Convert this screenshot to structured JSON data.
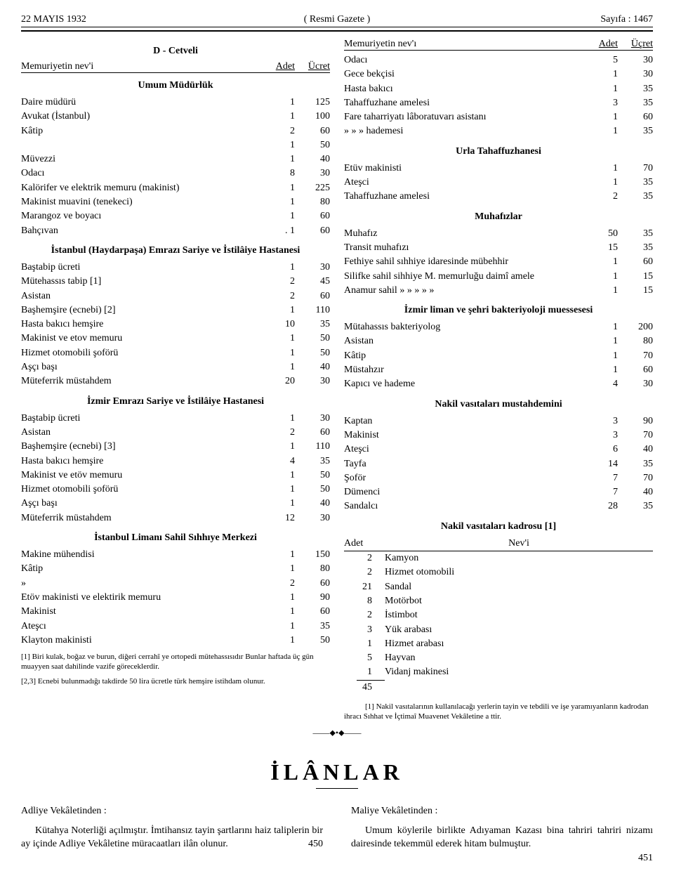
{
  "header": {
    "left": "22 MAYIS 1932",
    "center": "( Resmi Gazete )",
    "right": "Sayıfa : 1467"
  },
  "left_col": {
    "d_cetveli": "D - Cetveli",
    "header_lbl": "Memuriyetin nev'i",
    "header_adet": "Adet",
    "header_ucret": "Ücret",
    "sec1_title": "Umum Müdürlük",
    "sec1_rows": [
      {
        "lbl": "Daire müdürü",
        "adet": "1",
        "ucret": "125"
      },
      {
        "lbl": "Avukat (İstanbul)",
        "adet": "1",
        "ucret": "100"
      },
      {
        "lbl": "Kâtip",
        "adet": "2",
        "ucret": "60"
      },
      {
        "lbl": "",
        "adet": "1",
        "ucret": "50"
      },
      {
        "lbl": "Müvezzi",
        "adet": "1",
        "ucret": "40"
      },
      {
        "lbl": "Odacı",
        "adet": "8",
        "ucret": "30"
      },
      {
        "lbl": "Kalörifer ve elektrik memuru (makinist)",
        "adet": "1",
        "ucret": "225"
      },
      {
        "lbl": "Makinist muavini (tenekeci)",
        "adet": "1",
        "ucret": "80"
      },
      {
        "lbl": "Marangoz ve boyacı",
        "adet": "1",
        "ucret": "60"
      },
      {
        "lbl": "Bahçıvan",
        "adet": ". 1",
        "ucret": "60"
      }
    ],
    "sec2_title": "İstanbul (Haydarpaşa) Emrazı Sariye ve İstilâiye Hastanesi",
    "sec2_rows": [
      {
        "lbl": "Baştabip ücreti",
        "adet": "1",
        "ucret": "30"
      },
      {
        "lbl": "Mütehassıs tabip [1]",
        "adet": "2",
        "ucret": "45"
      },
      {
        "lbl": "Asistan",
        "adet": "2",
        "ucret": "60"
      },
      {
        "lbl": "Başhemşire (ecnebi) [2]",
        "adet": "1",
        "ucret": "110"
      },
      {
        "lbl": "Hasta bakıcı hemşire",
        "adet": "10",
        "ucret": "35"
      },
      {
        "lbl": "Makinist ve etov memuru",
        "adet": "1",
        "ucret": "50"
      },
      {
        "lbl": "Hizmet otomobili şoförü",
        "adet": "1",
        "ucret": "50"
      },
      {
        "lbl": "Aşçı başı",
        "adet": "1",
        "ucret": "40"
      },
      {
        "lbl": "Müteferrik müstahdem",
        "adet": "20",
        "ucret": "30"
      }
    ],
    "sec3_title": "İzmir Emrazı Sariye ve İstilâiye Hastanesi",
    "sec3_rows": [
      {
        "lbl": "Baştabip ücreti",
        "adet": "1",
        "ucret": "30"
      },
      {
        "lbl": "Asistan",
        "adet": "2",
        "ucret": "60"
      },
      {
        "lbl": "Başhemşire (ecnebi) [3]",
        "adet": "1",
        "ucret": "110"
      },
      {
        "lbl": "Hasta bakıcı hemşire",
        "adet": "4",
        "ucret": "35"
      },
      {
        "lbl": "Makinist ve etöv memuru",
        "adet": "1",
        "ucret": "50"
      },
      {
        "lbl": "Hizmet otomobili şoförü",
        "adet": "1",
        "ucret": "50"
      },
      {
        "lbl": "Aşçı başı",
        "adet": "1",
        "ucret": "40"
      },
      {
        "lbl": "Müteferrik müstahdem",
        "adet": "12",
        "ucret": "30"
      }
    ],
    "sec4_title": "İstanbul Limanı Sahil Sıhhıye Merkezi",
    "sec4_rows": [
      {
        "lbl": "Makine mühendisi",
        "adet": "1",
        "ucret": "150"
      },
      {
        "lbl": "Kâtip",
        "adet": "1",
        "ucret": "80"
      },
      {
        "lbl": "»",
        "adet": "2",
        "ucret": "60"
      },
      {
        "lbl": "Etöv makinisti ve elektirik memuru",
        "adet": "1",
        "ucret": "90"
      },
      {
        "lbl": "Makinist",
        "adet": "1",
        "ucret": "60"
      },
      {
        "lbl": "Ateşcı",
        "adet": "1",
        "ucret": "35"
      },
      {
        "lbl": "Klayton makinisti",
        "adet": "1",
        "ucret": "50"
      }
    ],
    "footnote1": "[1] Biri kulak, boğaz ve burun, diğeri cerrahî ye ortopedi mütehassısıdır Bunlar haftada üç gün muayyen saat dahilinde vazife göreceklerdir.",
    "footnote2": "[2,3] Ecnebi bulunmadığı takdirde 50 lira ücretle türk hemşire istihdam olunur."
  },
  "right_col": {
    "header_lbl": "Memuriyetin nev'ı",
    "header_adet": "Adet",
    "header_ucret": "Üçret",
    "sec1_rows": [
      {
        "lbl": "Odacı",
        "adet": "5",
        "ucret": "30"
      },
      {
        "lbl": "Gece bekçisi",
        "adet": "1",
        "ucret": "30"
      },
      {
        "lbl": "Hasta bakıcı",
        "adet": "1",
        "ucret": "35"
      },
      {
        "lbl": "Tahaffuzhane amelesi",
        "adet": "3",
        "ucret": "35"
      },
      {
        "lbl": "Fare taharriyatı lâboratuvarı asistanı",
        "adet": "1",
        "ucret": "60"
      },
      {
        "lbl": "»        »           »        hademesi",
        "adet": "1",
        "ucret": "35"
      }
    ],
    "sec2_title": "Urla Tahaffuzhanesi",
    "sec2_rows": [
      {
        "lbl": "Etüv makinisti",
        "adet": "1",
        "ucret": "70"
      },
      {
        "lbl": "Ateşci",
        "adet": "1",
        "ucret": "35"
      },
      {
        "lbl": "Tahaffuzhane amelesi",
        "adet": "2",
        "ucret": "35"
      }
    ],
    "sec3_title": "Muhafızlar",
    "sec3_rows": [
      {
        "lbl": "Muhafız",
        "adet": "50",
        "ucret": "35"
      },
      {
        "lbl": "Transit muhafızı",
        "adet": "15",
        "ucret": "35"
      },
      {
        "lbl": "Fethiye sahil sıhhiye idaresinde mübehhir",
        "adet": "1",
        "ucret": "60"
      },
      {
        "lbl": "Silifke sahil sihhiye M. memurluğu daimî amele",
        "adet": "1",
        "ucret": "15"
      },
      {
        "lbl": "Anamur sahil   »      »       »       »       »",
        "adet": "1",
        "ucret": "15"
      }
    ],
    "sec4_title": "İzmir liman ve şehri bakteriyoloji muessesesi",
    "sec4_rows": [
      {
        "lbl": "Mütahassıs bakteriyolog",
        "adet": "1",
        "ucret": "200"
      },
      {
        "lbl": "Asistan",
        "adet": "1",
        "ucret": "80"
      },
      {
        "lbl": "Kâtip",
        "adet": "1",
        "ucret": "70"
      },
      {
        "lbl": "Müstahzır",
        "adet": "1",
        "ucret": "60"
      },
      {
        "lbl": "Kapıcı ve hademe",
        "adet": "4",
        "ucret": "30"
      }
    ],
    "sec5_title": "Nakil vasıtaları mustahdemini",
    "sec5_rows": [
      {
        "lbl": "Kaptan",
        "adet": "3",
        "ucret": "90"
      },
      {
        "lbl": "Makinist",
        "adet": "3",
        "ucret": "70"
      },
      {
        "lbl": "Ateşci",
        "adet": "6",
        "ucret": "40"
      },
      {
        "lbl": "Tayfa",
        "adet": "14",
        "ucret": "35"
      },
      {
        "lbl": "Şoför",
        "adet": "7",
        "ucret": "70"
      },
      {
        "lbl": "Dümenci",
        "adet": "7",
        "ucret": "40"
      },
      {
        "lbl": "Sandalcı",
        "adet": "28",
        "ucret": "35"
      }
    ],
    "sec6_title": "Nakil vasıtaları kadrosu [1]",
    "sec6_header_adet": "Adet",
    "sec6_header_nev": "Nev'i",
    "sec6_rows": [
      {
        "adet": "2",
        "lbl": "Kamyon"
      },
      {
        "adet": "2",
        "lbl": "Hizmet otomobili"
      },
      {
        "adet": "21",
        "lbl": "Sandal"
      },
      {
        "adet": "8",
        "lbl": "Motörbot"
      },
      {
        "adet": "2",
        "lbl": "İstimbot"
      },
      {
        "adet": "3",
        "lbl": "Yük arabası"
      },
      {
        "adet": "1",
        "lbl": "Hizmet arabası"
      },
      {
        "adet": "5",
        "lbl": "Hayvan"
      },
      {
        "adet": "1",
        "lbl": "Vidanj makinesi"
      }
    ],
    "sec6_total": "45",
    "footnote": "[1] Nakil vasıtalarının kullanılacağı yerlerin tayin ve tebdili ve işe yaramıyanların kadrodan ihracı Sıhhat ve İçtimaî Muavenet Vekâletine a ttir."
  },
  "ilanlar_title": "İLÂNLAR",
  "ann_left": {
    "title": "Adliye Vekâletinden :",
    "body": "Kütahya Noterliği açılmıştır. İmtihansız tayin şartlarını haiz taliplerin bir ay içinde Adliye Vekâletine müracaatları ilân olunur.",
    "num": "450"
  },
  "ann_right": {
    "title": "Maliye Vekâletinden :",
    "body": "Umum köylerile birlikte Adıyaman Kazası bina tahriri tahriri nizamı dairesinde tekemmül ederek hitam bulmuştur.",
    "num": "451"
  }
}
